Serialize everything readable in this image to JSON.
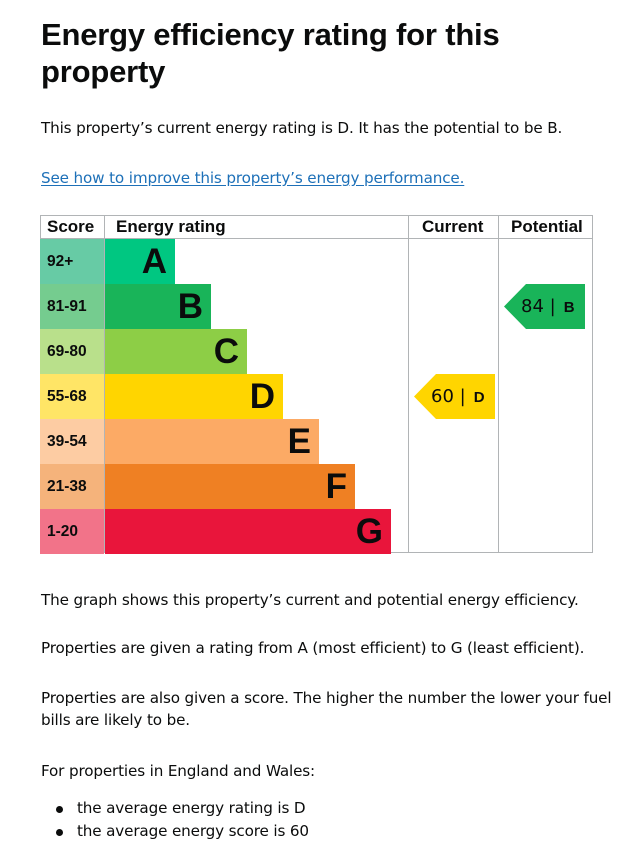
{
  "page_title": "Energy efficiency rating for this property",
  "intro": "This property’s current energy rating is D. It has the potential to be B.",
  "improve_link": "See how to improve this property’s energy performance.",
  "chart_data": {
    "type": "table",
    "headers": {
      "score": "Score",
      "rating": "Energy rating",
      "current": "Current",
      "potential": "Potential"
    },
    "bands": [
      {
        "score": "92+",
        "letter": "A",
        "color": "#00c781",
        "score_bg": "#67cba5",
        "text_color": "#0b0c0c"
      },
      {
        "score": "81-91",
        "letter": "B",
        "color": "#19b459",
        "score_bg": "#75cc8f",
        "text_color": "#0b0c0c"
      },
      {
        "score": "69-80",
        "letter": "C",
        "color": "#8dce46",
        "score_bg": "#b9e08b",
        "text_color": "#0b0c0c"
      },
      {
        "score": "55-68",
        "letter": "D",
        "color": "#ffd500",
        "score_bg": "#ffe566",
        "text_color": "#0b0c0c"
      },
      {
        "score": "39-54",
        "letter": "E",
        "color": "#fcaa65",
        "score_bg": "#fdcca3",
        "text_color": "#0b0c0c"
      },
      {
        "score": "21-38",
        "letter": "F",
        "color": "#ef8023",
        "score_bg": "#f5b37b",
        "text_color": "#0b0c0c"
      },
      {
        "score": "1-20",
        "letter": "G",
        "color": "#e9153b",
        "score_bg": "#f27389",
        "text_color": "#0b0c0c"
      }
    ],
    "current": {
      "value": 60,
      "band": "D",
      "color": "#ffd500"
    },
    "potential": {
      "value": 84,
      "band": "B",
      "color": "#19b459"
    }
  },
  "graph_text": "The graph shows this property’s current and potential energy efficiency.",
  "rating_text": "Properties are given a rating from A (most efficient) to G (least efficient).",
  "score_text_line1": "Properties are also given a score. The higher the number the lower your fuel",
  "score_text_line2": "bills are likely to be.",
  "england_wales": "For properties in England and Wales:",
  "bullets": [
    "the average energy rating is D",
    "the average energy score is 60"
  ]
}
